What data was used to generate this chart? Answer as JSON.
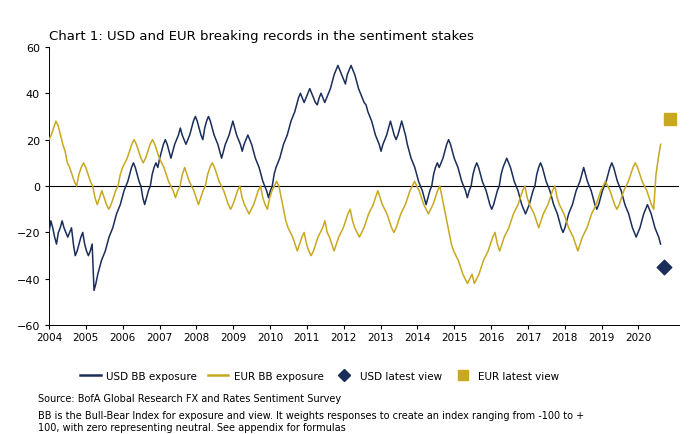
{
  "title": "Chart 1: USD and EUR breaking records in the sentiment stakes",
  "usd_color": "#1a2e5a",
  "eur_color": "#c8a820",
  "usd_marker_color": "#1a2e5a",
  "eur_marker_color": "#c8a820",
  "ylim": [
    -60,
    60
  ],
  "yticks": [
    -60,
    -40,
    -20,
    0,
    20,
    40,
    60
  ],
  "source_text": "Source: BofA Global Research FX and Rates Sentiment Survey",
  "note_text": "BB is the Bull-Bear Index for exposure and view. It weights responses to create an index ranging from -100 to +\n100, with zero representing neutral. See appendix for formulas",
  "legend_labels": [
    "USD BB exposure",
    "EUR BB exposure",
    "USD latest view",
    "EUR latest view"
  ],
  "usd_latest_view": -35,
  "eur_latest_view": 29,
  "t_usd_marker": 2020.7,
  "t_eur_marker": 2020.85,
  "start_year": 2004.0,
  "end_year": 2020.6,
  "usd_data": [
    -20,
    -15,
    -18,
    -22,
    -25,
    -20,
    -18,
    -15,
    -18,
    -20,
    -22,
    -20,
    -18,
    -25,
    -30,
    -28,
    -25,
    -22,
    -20,
    -25,
    -28,
    -30,
    -28,
    -25,
    -45,
    -42,
    -38,
    -35,
    -32,
    -30,
    -28,
    -25,
    -22,
    -20,
    -18,
    -15,
    -12,
    -10,
    -8,
    -5,
    -2,
    0,
    2,
    5,
    8,
    10,
    8,
    5,
    2,
    0,
    -5,
    -8,
    -5,
    -2,
    0,
    5,
    8,
    10,
    8,
    12,
    15,
    18,
    20,
    18,
    15,
    12,
    15,
    18,
    20,
    22,
    25,
    22,
    20,
    18,
    20,
    22,
    25,
    28,
    30,
    28,
    25,
    22,
    20,
    25,
    28,
    30,
    28,
    25,
    22,
    20,
    18,
    15,
    12,
    15,
    18,
    20,
    22,
    25,
    28,
    25,
    22,
    20,
    18,
    15,
    18,
    20,
    22,
    20,
    18,
    15,
    12,
    10,
    8,
    5,
    2,
    0,
    -2,
    -5,
    -2,
    0,
    5,
    8,
    10,
    12,
    15,
    18,
    20,
    22,
    25,
    28,
    30,
    32,
    35,
    38,
    40,
    38,
    36,
    38,
    40,
    42,
    40,
    38,
    36,
    35,
    38,
    40,
    38,
    36,
    38,
    40,
    42,
    45,
    48,
    50,
    52,
    50,
    48,
    46,
    44,
    48,
    50,
    52,
    50,
    48,
    45,
    42,
    40,
    38,
    36,
    35,
    32,
    30,
    28,
    25,
    22,
    20,
    18,
    15,
    18,
    20,
    22,
    25,
    28,
    25,
    22,
    20,
    22,
    25,
    28,
    25,
    22,
    18,
    15,
    12,
    10,
    8,
    5,
    2,
    0,
    -2,
    -5,
    -8,
    -5,
    -2,
    0,
    5,
    8,
    10,
    8,
    10,
    12,
    15,
    18,
    20,
    18,
    15,
    12,
    10,
    8,
    5,
    2,
    0,
    -2,
    -5,
    -2,
    0,
    5,
    8,
    10,
    8,
    5,
    2,
    0,
    -2,
    -5,
    -8,
    -10,
    -8,
    -5,
    -2,
    0,
    5,
    8,
    10,
    12,
    10,
    8,
    5,
    2,
    0,
    -2,
    -5,
    -8,
    -10,
    -12,
    -10,
    -8,
    -5,
    -2,
    0,
    5,
    8,
    10,
    8,
    5,
    2,
    0,
    -2,
    -5,
    -8,
    -10,
    -12,
    -15,
    -18,
    -20,
    -18,
    -15,
    -12,
    -10,
    -8,
    -5,
    -2,
    0,
    2,
    5,
    8,
    5,
    2,
    0,
    -2,
    -5,
    -8,
    -10,
    -8,
    -5,
    -2,
    0,
    2,
    5,
    8,
    10,
    8,
    5,
    2,
    0,
    -2,
    -5,
    -8,
    -10,
    -12,
    -15,
    -18,
    -20,
    -22,
    -20,
    -18,
    -15,
    -12,
    -10,
    -8,
    -10,
    -12,
    -15,
    -18,
    -20,
    -22,
    -25
  ],
  "eur_data": [
    20,
    22,
    25,
    28,
    26,
    22,
    18,
    15,
    10,
    8,
    5,
    2,
    0,
    5,
    8,
    10,
    8,
    5,
    2,
    0,
    -5,
    -8,
    -5,
    -2,
    -5,
    -8,
    -10,
    -8,
    -5,
    -2,
    0,
    5,
    8,
    10,
    12,
    15,
    18,
    20,
    18,
    15,
    12,
    10,
    12,
    15,
    18,
    20,
    18,
    15,
    12,
    10,
    8,
    5,
    2,
    0,
    -2,
    -5,
    -2,
    0,
    5,
    8,
    5,
    2,
    0,
    -2,
    -5,
    -8,
    -5,
    -2,
    0,
    5,
    8,
    10,
    8,
    5,
    2,
    0,
    -2,
    -5,
    -8,
    -10,
    -8,
    -5,
    -2,
    0,
    -5,
    -8,
    -10,
    -12,
    -10,
    -8,
    -5,
    -2,
    0,
    -5,
    -8,
    -10,
    -5,
    -2,
    0,
    2,
    0,
    -5,
    -10,
    -15,
    -18,
    -20,
    -22,
    -25,
    -28,
    -25,
    -22,
    -20,
    -25,
    -28,
    -30,
    -28,
    -25,
    -22,
    -20,
    -18,
    -15,
    -20,
    -22,
    -25,
    -28,
    -25,
    -22,
    -20,
    -18,
    -15,
    -12,
    -10,
    -15,
    -18,
    -20,
    -22,
    -20,
    -18,
    -15,
    -12,
    -10,
    -8,
    -5,
    -2,
    -5,
    -8,
    -10,
    -12,
    -15,
    -18,
    -20,
    -18,
    -15,
    -12,
    -10,
    -8,
    -5,
    -2,
    0,
    2,
    0,
    -2,
    -5,
    -8,
    -10,
    -12,
    -10,
    -8,
    -5,
    -2,
    0,
    -5,
    -10,
    -15,
    -20,
    -25,
    -28,
    -30,
    -32,
    -35,
    -38,
    -40,
    -42,
    -40,
    -38,
    -42,
    -40,
    -38,
    -35,
    -32,
    -30,
    -28,
    -25,
    -22,
    -20,
    -25,
    -28,
    -25,
    -22,
    -20,
    -18,
    -15,
    -12,
    -10,
    -8,
    -5,
    -2,
    0,
    -5,
    -8,
    -10,
    -12,
    -15,
    -18,
    -15,
    -12,
    -10,
    -8,
    -5,
    -2,
    0,
    -5,
    -8,
    -10,
    -12,
    -15,
    -18,
    -20,
    -22,
    -25,
    -28,
    -25,
    -22,
    -20,
    -18,
    -15,
    -12,
    -10,
    -8,
    -5,
    -2,
    0,
    2,
    0,
    -2,
    -5,
    -8,
    -10,
    -8,
    -5,
    -2,
    0,
    2,
    5,
    8,
    10,
    8,
    5,
    2,
    0,
    -2,
    -5,
    -8,
    -10,
    5,
    12,
    18
  ]
}
